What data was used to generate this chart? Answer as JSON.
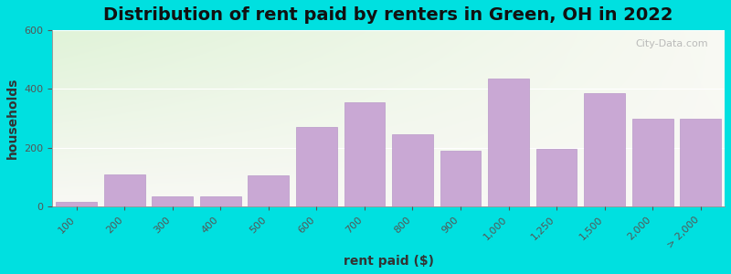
{
  "title": "Distribution of rent paid by renters in Green, OH in 2022",
  "xlabel": "rent paid ($)",
  "ylabel": "households",
  "categories": [
    "100",
    "200",
    "300",
    "400",
    "500",
    "600",
    "700",
    "800",
    "900",
    "1,000",
    "1,250",
    "1,500",
    "2,000",
    "> 2,000"
  ],
  "values": [
    15,
    110,
    35,
    35,
    105,
    270,
    355,
    245,
    190,
    435,
    195,
    385,
    300,
    300
  ],
  "bar_color": "#c9a8d4",
  "bar_edge_color": "#b898c8",
  "background_outer": "#00e0e0",
  "ylim": [
    0,
    600
  ],
  "yticks": [
    0,
    200,
    400,
    600
  ],
  "title_fontsize": 14,
  "axis_label_fontsize": 10,
  "tick_fontsize": 8,
  "watermark_text": "City-Data.com"
}
